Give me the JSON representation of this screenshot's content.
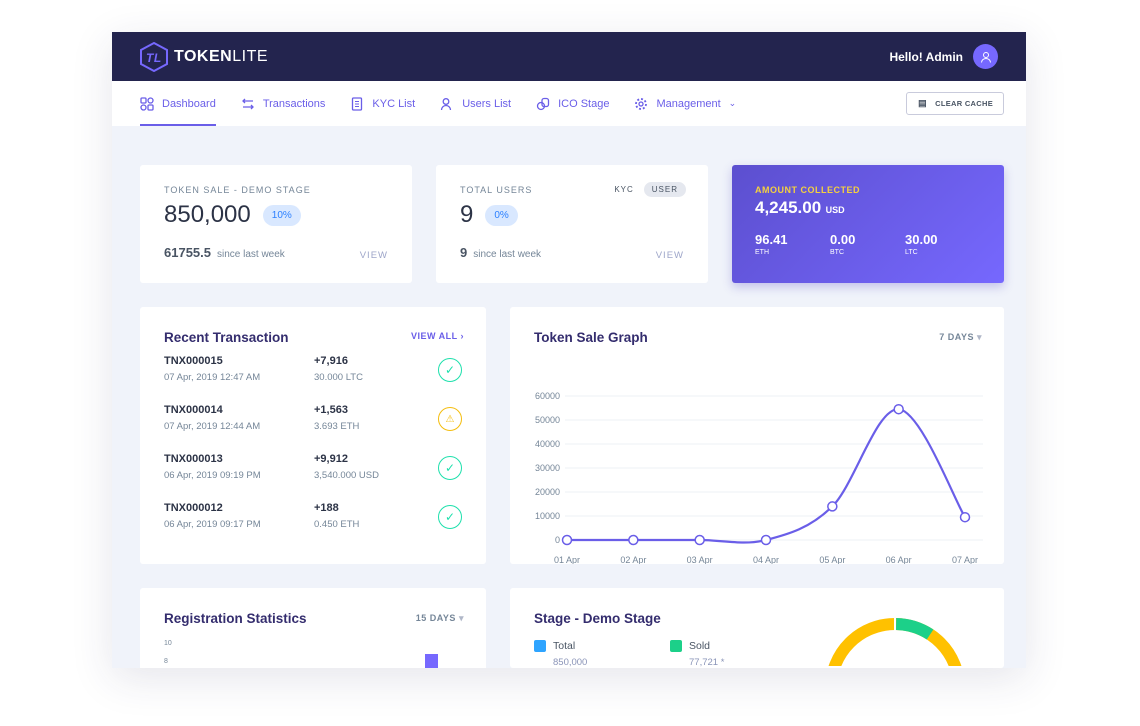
{
  "header": {
    "brand_bold": "TOKEN",
    "brand_light": "LITE",
    "greeting": "Hello! Admin"
  },
  "nav": {
    "items": [
      {
        "label": "Dashboard",
        "icon": "grid-icon"
      },
      {
        "label": "Transactions",
        "icon": "arrows-icon"
      },
      {
        "label": "KYC List",
        "icon": "document-icon"
      },
      {
        "label": "Users List",
        "icon": "users-icon"
      },
      {
        "label": "ICO Stage",
        "icon": "coins-icon"
      },
      {
        "label": "Management",
        "icon": "gear-icon"
      }
    ],
    "clear_cache": "CLEAR CACHE"
  },
  "token_sale": {
    "label": "TOKEN SALE - DEMO STAGE",
    "value": "850,000",
    "percent": "10%",
    "since_value": "61755.5",
    "since_label": "since last week",
    "view": "VIEW"
  },
  "users": {
    "label": "TOTAL USERS",
    "tab_kyc": "KYC",
    "tab_user": "USER",
    "value": "9",
    "percent": "0%",
    "since_value": "9",
    "since_label": "since last week",
    "view": "VIEW"
  },
  "amount": {
    "label": "AMOUNT COLLECTED",
    "value": "4,245.00",
    "unit": "USD",
    "items": [
      {
        "value": "96.41",
        "unit": "ETH"
      },
      {
        "value": "0.00",
        "unit": "BTC"
      },
      {
        "value": "30.00",
        "unit": "LTC"
      }
    ]
  },
  "recent": {
    "title": "Recent Transaction",
    "view_all": "VIEW ALL",
    "rows": [
      {
        "id": "TNX000015",
        "date": "07 Apr, 2019 12:47 AM",
        "amount": "+7,916",
        "paid": "30.000 LTC",
        "status": "success"
      },
      {
        "id": "TNX000014",
        "date": "07 Apr, 2019 12:44 AM",
        "amount": "+1,563",
        "paid": "3.693 ETH",
        "status": "warning"
      },
      {
        "id": "TNX000013",
        "date": "06 Apr, 2019 09:19 PM",
        "amount": "+9,912",
        "paid": "3,540.000 USD",
        "status": "success"
      },
      {
        "id": "TNX000012",
        "date": "06 Apr, 2019 09:17 PM",
        "amount": "+188",
        "paid": "0.450 ETH",
        "status": "success"
      }
    ]
  },
  "graph": {
    "title": "Token Sale Graph",
    "range": "7 DAYS"
  },
  "chart_data": {
    "type": "line",
    "categories": [
      "01 Apr",
      "02 Apr",
      "03 Apr",
      "04 Apr",
      "05 Apr",
      "06 Apr",
      "07 Apr"
    ],
    "values": [
      0,
      0,
      0,
      0,
      14000,
      54500,
      9500
    ],
    "ylim": [
      0,
      60000
    ],
    "yticks": [
      0,
      10000,
      20000,
      30000,
      40000,
      50000,
      60000
    ],
    "grid": true,
    "color": "#6a5ee8"
  },
  "registration": {
    "title": "Registration Statistics",
    "range": "15 DAYS",
    "yticks": [
      "10",
      "8"
    ]
  },
  "stage": {
    "title": "Stage - Demo Stage",
    "total_label": "Total",
    "total_value": "850,000",
    "sold_label": "Sold",
    "sold_value": "77,721 *",
    "colors": {
      "total": "#2ea4ff",
      "sold": "#1cd089",
      "remaining": "#ffc100"
    }
  }
}
